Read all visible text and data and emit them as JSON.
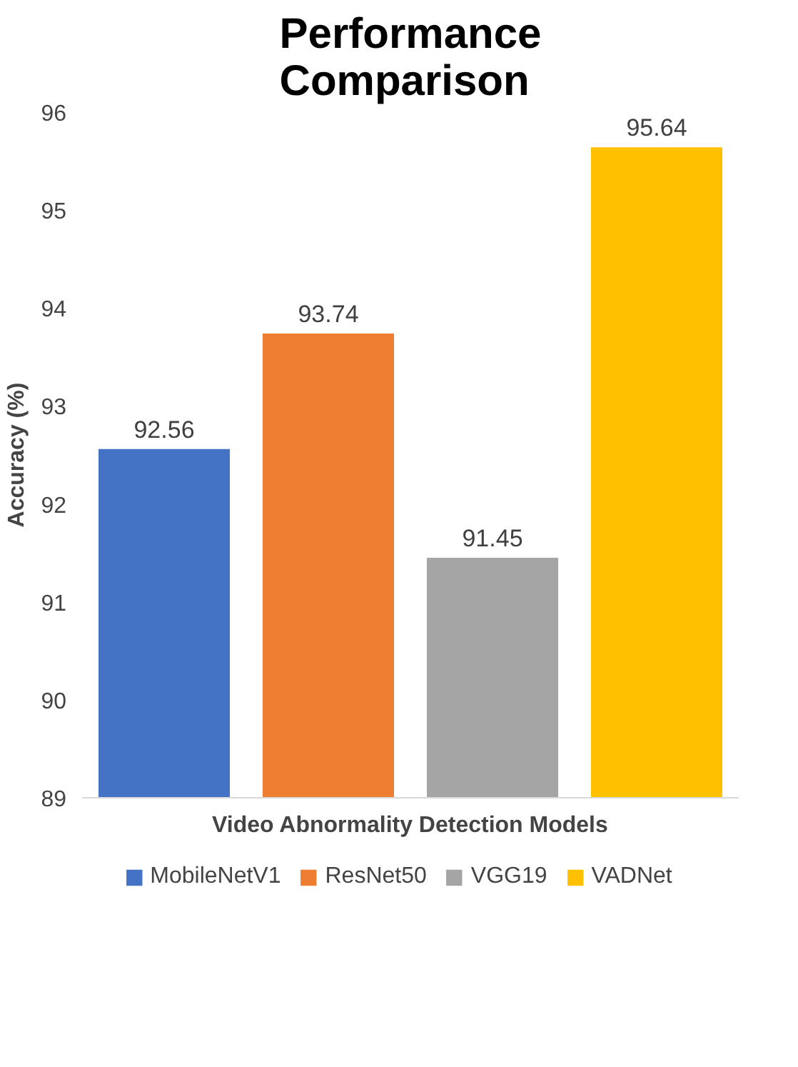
{
  "chart_data": {
    "type": "bar",
    "title": "Performance Comparison",
    "xlabel": "Video Abnormality Detection Models",
    "ylabel": "Accuracy (%)",
    "categories": [
      null,
      null,
      null,
      null
    ],
    "series": [
      {
        "name": "MobileNetV1",
        "color": "#4472c4",
        "values": [
          92.56,
          null,
          null,
          null
        ]
      },
      {
        "name": "ResNet50",
        "color": "#ed7d31",
        "values": [
          null,
          93.74,
          null,
          null
        ]
      },
      {
        "name": "VGG19",
        "color": "#a5a5a5",
        "values": [
          null,
          null,
          91.45,
          null
        ]
      },
      {
        "name": "VADNet",
        "color": "#ffc000",
        "values": [
          null,
          null,
          null,
          95.64
        ]
      }
    ],
    "ylim": [
      89,
      96
    ],
    "yticks": [
      89,
      90,
      91,
      92,
      93,
      94,
      95,
      96
    ],
    "data_labels": true,
    "legend": "bottom",
    "tick_labels": "y",
    "grid": false
  }
}
